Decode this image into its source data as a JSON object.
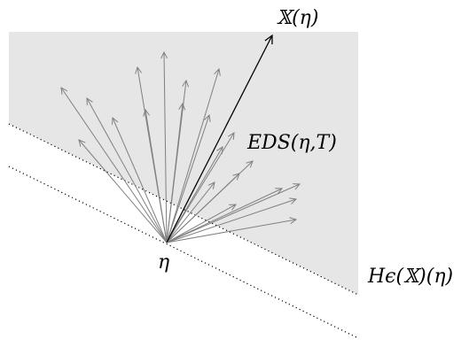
{
  "diagram": {
    "labels": {
      "eta": "η",
      "x_eta": "𝕏(η)",
      "eds": "EDS(η,T)",
      "h_eps": "Hϵ(𝕏)(η)"
    },
    "colors": {
      "shaded_region": "#e6e6e6",
      "gray_arrows": "#808080",
      "main_arrow": "#000000",
      "dotted_lines": "#000000"
    }
  }
}
